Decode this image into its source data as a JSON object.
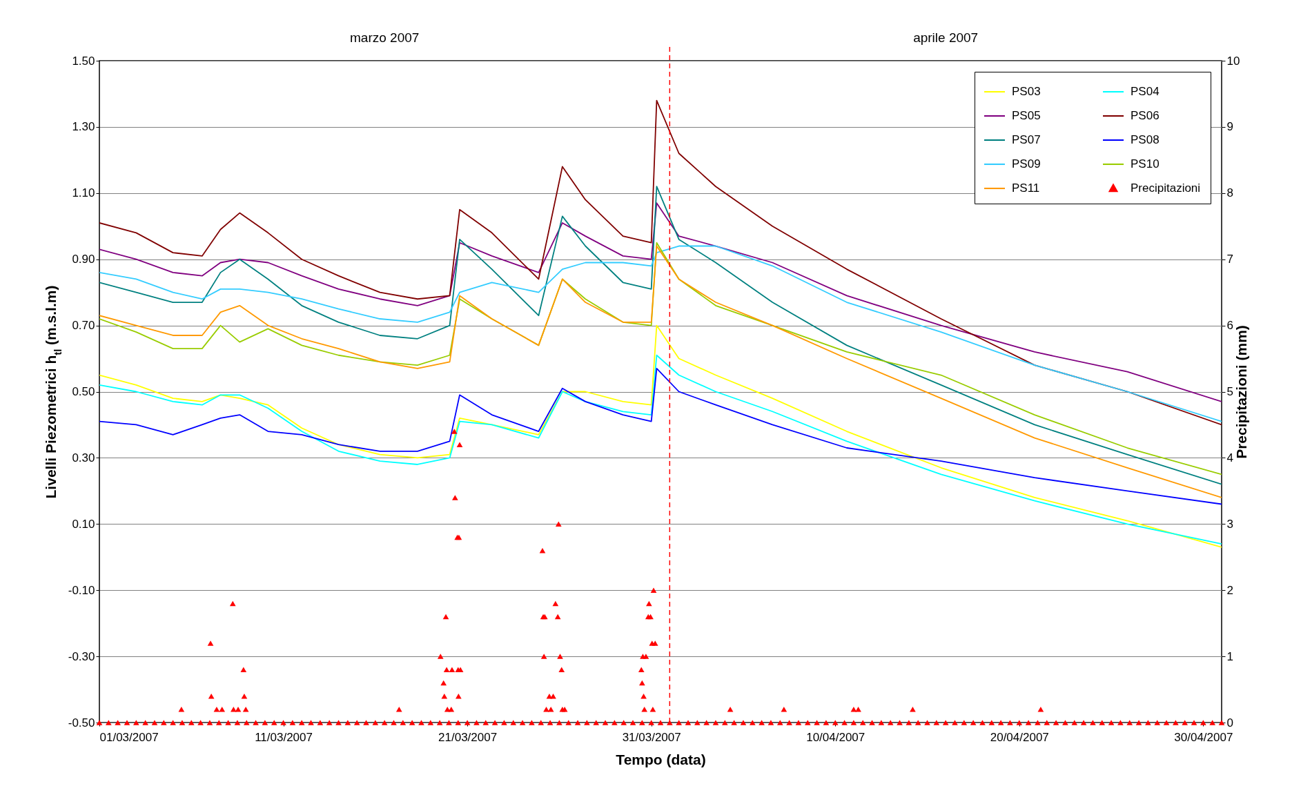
{
  "chart_data": {
    "type": "line",
    "xlabel": "Tempo (data)",
    "ylabel": "Livelli Piezometrici h$_{tl}$ (m.s.l.m)",
    "y2label": "Precipitazioni (mm)",
    "annotations": [
      "marzo 2007",
      "aprile 2007"
    ],
    "ref_lines": [
      {
        "axis": "x",
        "value": "2007-04-01",
        "color": "#ff0000",
        "line_style": "dashed"
      }
    ],
    "xlim": [
      "2007-03-01",
      "2007-05-01"
    ],
    "xticks": [
      {
        "value": "2007-03-01",
        "label": "01/03/2007"
      },
      {
        "value": "2007-03-11",
        "label": "11/03/2007"
      },
      {
        "value": "2007-03-21",
        "label": "21/03/2007"
      },
      {
        "value": "2007-03-31",
        "label": "31/03/2007"
      },
      {
        "value": "2007-04-10",
        "label": "10/04/2007"
      },
      {
        "value": "2007-04-20",
        "label": "20/04/2007"
      },
      {
        "value": "2007-04-30",
        "label": "30/04/2007"
      }
    ],
    "ylim": [
      -0.5,
      1.5
    ],
    "yticks": [
      {
        "value": 1.5,
        "label": "1.50"
      },
      {
        "value": 1.3,
        "label": "1.30"
      },
      {
        "value": 1.1,
        "label": "1.10"
      },
      {
        "value": 0.9,
        "label": "0.90"
      },
      {
        "value": 0.7,
        "label": "0.70"
      },
      {
        "value": 0.5,
        "label": "0.50"
      },
      {
        "value": 0.3,
        "label": "0.30"
      },
      {
        "value": 0.1,
        "label": "0.10"
      },
      {
        "value": -0.1,
        "label": "-0.10"
      },
      {
        "value": -0.3,
        "label": "-0.30"
      },
      {
        "value": -0.5,
        "label": "-0.50"
      }
    ],
    "y2lim": [
      0,
      10
    ],
    "y2ticks": [
      0,
      1,
      2,
      3,
      4,
      5,
      6,
      7,
      8,
      9,
      10
    ],
    "grid": "y",
    "legend": "top right",
    "x": [
      "2007-03-01",
      "2007-03-03",
      "2007-03-05",
      "2007-03-06T14:00",
      "2007-03-07T14:00",
      "2007-03-08T15:00",
      "2007-03-10T04:00",
      "2007-03-12",
      "2007-03-14",
      "2007-03-16T06:00",
      "2007-03-18T07:00",
      "2007-03-20T01:00",
      "2007-03-20T14:00",
      "2007-03-22T08:00",
      "2007-03-24T21:00",
      "2007-03-26T04:00",
      "2007-03-27T10:00",
      "2007-03-29T11:00",
      "2007-03-31T00:00",
      "2007-03-31T07:00",
      "2007-04-01T12:00",
      "2007-04-03T12:00",
      "2007-04-06T14:00",
      "2007-04-10T15:00",
      "2007-04-15T18:00",
      "2007-04-20T20:00",
      "2007-04-25T21:00",
      "2007-05-01"
    ],
    "series": [
      {
        "name": "PS03",
        "color": "#ffff00",
        "values": [
          0.55,
          0.52,
          0.48,
          0.47,
          0.49,
          0.48,
          0.46,
          0.39,
          0.34,
          0.31,
          0.3,
          0.31,
          0.42,
          0.4,
          0.37,
          0.5,
          0.5,
          0.47,
          0.46,
          0.7,
          0.6,
          0.55,
          0.48,
          0.38,
          0.27,
          0.18,
          0.11,
          0.03
        ]
      },
      {
        "name": "PS04",
        "color": "#00ffff",
        "values": [
          0.52,
          0.5,
          0.47,
          0.46,
          0.49,
          0.49,
          0.45,
          0.38,
          0.32,
          0.29,
          0.28,
          0.3,
          0.41,
          0.4,
          0.36,
          0.5,
          0.47,
          0.44,
          0.43,
          0.61,
          0.55,
          0.5,
          0.44,
          0.35,
          0.25,
          0.17,
          0.1,
          0.04
        ]
      },
      {
        "name": "PS05",
        "color": "#800080",
        "values": [
          0.93,
          0.9,
          0.86,
          0.85,
          0.89,
          0.9,
          0.89,
          0.85,
          0.81,
          0.78,
          0.76,
          0.79,
          0.95,
          0.91,
          0.86,
          1.01,
          0.97,
          0.91,
          0.9,
          1.07,
          0.97,
          0.94,
          0.89,
          0.79,
          0.7,
          0.62,
          0.56,
          0.47
        ]
      },
      {
        "name": "PS06",
        "color": "#800000",
        "values": [
          1.01,
          0.98,
          0.92,
          0.91,
          0.99,
          1.04,
          0.98,
          0.9,
          0.85,
          0.8,
          0.78,
          0.79,
          1.05,
          0.98,
          0.84,
          1.18,
          1.08,
          0.97,
          0.95,
          1.38,
          1.22,
          1.12,
          1.0,
          0.87,
          0.72,
          0.58,
          0.5,
          0.4
        ]
      },
      {
        "name": "PS07",
        "color": "#008080",
        "values": [
          0.83,
          0.8,
          0.77,
          0.77,
          0.86,
          0.9,
          0.84,
          0.76,
          0.71,
          0.67,
          0.66,
          0.7,
          0.96,
          0.87,
          0.73,
          1.03,
          0.94,
          0.83,
          0.81,
          1.12,
          0.96,
          0.89,
          0.77,
          0.64,
          0.52,
          0.4,
          0.31,
          0.22
        ]
      },
      {
        "name": "PS08",
        "color": "#0000ff",
        "values": [
          0.41,
          0.4,
          0.37,
          0.4,
          0.42,
          0.43,
          0.38,
          0.37,
          0.34,
          0.32,
          0.32,
          0.35,
          0.49,
          0.43,
          0.38,
          0.51,
          0.47,
          0.43,
          0.41,
          0.57,
          0.5,
          0.46,
          0.4,
          0.33,
          0.29,
          0.24,
          0.2,
          0.16
        ]
      },
      {
        "name": "PS09",
        "color": "#33ccff",
        "values": [
          0.86,
          0.84,
          0.8,
          0.78,
          0.81,
          0.81,
          0.8,
          0.78,
          0.75,
          0.72,
          0.71,
          0.74,
          0.8,
          0.83,
          0.8,
          0.87,
          0.89,
          0.89,
          0.88,
          0.92,
          0.94,
          0.94,
          0.88,
          0.77,
          0.68,
          0.58,
          0.5,
          0.41
        ]
      },
      {
        "name": "PS10",
        "color": "#99cc00",
        "values": [
          0.72,
          0.68,
          0.63,
          0.63,
          0.7,
          0.65,
          0.69,
          0.64,
          0.61,
          0.59,
          0.58,
          0.61,
          0.78,
          0.72,
          0.64,
          0.84,
          0.78,
          0.71,
          0.7,
          0.95,
          0.84,
          0.76,
          0.7,
          0.62,
          0.55,
          0.43,
          0.33,
          0.25
        ]
      },
      {
        "name": "PS11",
        "color": "#ff9900",
        "values": [
          0.73,
          0.7,
          0.67,
          0.67,
          0.74,
          0.76,
          0.7,
          0.66,
          0.63,
          0.59,
          0.57,
          0.59,
          0.79,
          0.72,
          0.64,
          0.84,
          0.77,
          0.71,
          0.71,
          0.94,
          0.84,
          0.77,
          0.7,
          0.6,
          0.48,
          0.36,
          0.27,
          0.18
        ]
      },
      {
        "name": "Precipitazioni",
        "type": "scatter",
        "axis": "y2",
        "marker": "triangle",
        "color": "#ff0000",
        "x": [
          "2007-03-01",
          "2007-03-01T12:00",
          "2007-03-02",
          "2007-03-02T12:00",
          "2007-03-03",
          "2007-03-03T12:00",
          "2007-03-04",
          "2007-03-04T12:00",
          "2007-03-05",
          "2007-03-05T12:00",
          "2007-03-06",
          "2007-03-06T12:00",
          "2007-03-07",
          "2007-03-07T12:00",
          "2007-03-08",
          "2007-03-08T12:00",
          "2007-03-09",
          "2007-03-09T12:00",
          "2007-03-10",
          "2007-03-10T12:00",
          "2007-03-11",
          "2007-03-11T12:00",
          "2007-03-12",
          "2007-03-12T12:00",
          "2007-03-13",
          "2007-03-13T12:00",
          "2007-03-14",
          "2007-03-14T12:00",
          "2007-03-15",
          "2007-03-15T12:00",
          "2007-03-16",
          "2007-03-16T12:00",
          "2007-03-17",
          "2007-03-17T12:00",
          "2007-03-18",
          "2007-03-18T12:00",
          "2007-03-19",
          "2007-03-19T12:00",
          "2007-03-20",
          "2007-03-20T12:00",
          "2007-03-21",
          "2007-03-21T12:00",
          "2007-03-22",
          "2007-03-22T12:00",
          "2007-03-23",
          "2007-03-23T12:00",
          "2007-03-24",
          "2007-03-24T12:00",
          "2007-03-25",
          "2007-03-25T12:00",
          "2007-03-26",
          "2007-03-26T12:00",
          "2007-03-27",
          "2007-03-27T12:00",
          "2007-03-28",
          "2007-03-28T12:00",
          "2007-03-29",
          "2007-03-29T12:00",
          "2007-03-30",
          "2007-03-30T12:00",
          "2007-03-31",
          "2007-03-31T12:00",
          "2007-04-01",
          "2007-04-01T12:00",
          "2007-04-02",
          "2007-04-02T12:00",
          "2007-04-03",
          "2007-04-03T12:00",
          "2007-04-04",
          "2007-04-04T12:00",
          "2007-04-05",
          "2007-04-05T12:00",
          "2007-04-06",
          "2007-04-06T12:00",
          "2007-04-07",
          "2007-04-07T12:00",
          "2007-04-08",
          "2007-04-08T12:00",
          "2007-04-09",
          "2007-04-09T12:00",
          "2007-04-10",
          "2007-04-10T12:00",
          "2007-04-11",
          "2007-04-11T12:00",
          "2007-04-12",
          "2007-04-12T12:00",
          "2007-04-13",
          "2007-04-13T12:00",
          "2007-04-14",
          "2007-04-14T12:00",
          "2007-04-15",
          "2007-04-15T12:00",
          "2007-04-16",
          "2007-04-16T12:00",
          "2007-04-17",
          "2007-04-17T12:00",
          "2007-04-18",
          "2007-04-18T12:00",
          "2007-04-19",
          "2007-04-19T12:00",
          "2007-04-20",
          "2007-04-20T12:00",
          "2007-04-21",
          "2007-04-21T12:00",
          "2007-04-22",
          "2007-04-22T12:00",
          "2007-04-23",
          "2007-04-23T12:00",
          "2007-04-24",
          "2007-04-24T12:00",
          "2007-04-25",
          "2007-04-25T12:00",
          "2007-04-26",
          "2007-04-26T12:00",
          "2007-04-27",
          "2007-04-27T12:00",
          "2007-04-28",
          "2007-04-28T12:00",
          "2007-04-29",
          "2007-04-29T12:00",
          "2007-04-30",
          "2007-04-30T12:00",
          "2007-05-01",
          "2007-03-05T11:00",
          "2007-03-07T01:00",
          "2007-03-07T02:00",
          "2007-03-07T09:00",
          "2007-03-07T16:00",
          "2007-03-08T06:00",
          "2007-03-08T07:00",
          "2007-03-08T13:00",
          "2007-03-08T20:00",
          "2007-03-08T21:00",
          "2007-03-08T23:00",
          "2007-03-17T07:00",
          "2007-03-19T13:00",
          "2007-03-19T17:00",
          "2007-03-19T18:00",
          "2007-03-19T20:00",
          "2007-03-19T21:00",
          "2007-03-19T22:00",
          "2007-03-20T03:00",
          "2007-03-20T04:00",
          "2007-03-20T07:00",
          "2007-03-20T08:00",
          "2007-03-20T11:00",
          "2007-03-20T12:00",
          "2007-03-20T12:30",
          "2007-03-20T13:00",
          "2007-03-20T14:00",
          "2007-03-20T15:00",
          "2007-03-25T02:00",
          "2007-03-25T03:00",
          "2007-03-25T04:00",
          "2007-03-25T05:00",
          "2007-03-25T07:00",
          "2007-03-25T11:00",
          "2007-03-25T13:00",
          "2007-03-25T16:00",
          "2007-03-25T19:00",
          "2007-03-25T22:00",
          "2007-03-25T23:00",
          "2007-03-26T01:00",
          "2007-03-26T03:00",
          "2007-03-26T04:00",
          "2007-03-26T07:00",
          "2007-03-30T11:00",
          "2007-03-30T12:00",
          "2007-03-30T13:00",
          "2007-03-30T14:00",
          "2007-03-30T15:00",
          "2007-03-30T17:00",
          "2007-03-30T20:00",
          "2007-03-30T21:00",
          "2007-03-30T23:00",
          "2007-03-31T01:00",
          "2007-03-31T02:00",
          "2007-03-31T03:00",
          "2007-03-31T05:00",
          "2007-04-04T07:00",
          "2007-04-07T05:00",
          "2007-04-11T00:00",
          "2007-04-11T06:00",
          "2007-04-14T05:00",
          "2007-04-21T04:00"
        ],
        "values": [
          0,
          0,
          0,
          0,
          0,
          0,
          0,
          0,
          0,
          0,
          0,
          0,
          0,
          0,
          0,
          0,
          0,
          0,
          0,
          0,
          0,
          0,
          0,
          0,
          0,
          0,
          0,
          0,
          0,
          0,
          0,
          0,
          0,
          0,
          0,
          0,
          0,
          0,
          0,
          0,
          0,
          0,
          0,
          0,
          0,
          0,
          0,
          0,
          0,
          0,
          0,
          0,
          0,
          0,
          0,
          0,
          0,
          0,
          0,
          0,
          0,
          0,
          0,
          0,
          0,
          0,
          0,
          0,
          0,
          0,
          0,
          0,
          0,
          0,
          0,
          0,
          0,
          0,
          0,
          0,
          0,
          0,
          0,
          0,
          0,
          0,
          0,
          0,
          0,
          0,
          0,
          0,
          0,
          0,
          0,
          0,
          0,
          0,
          0,
          0,
          0,
          0,
          0,
          0,
          0,
          0,
          0,
          0,
          0,
          0,
          0,
          0,
          0,
          0,
          0,
          0,
          0,
          0,
          0,
          0,
          0,
          0,
          0,
          0.2,
          1.2,
          0.4,
          0.2,
          0.2,
          1.8,
          0.2,
          0.2,
          0.8,
          0.4,
          0.2,
          0.2,
          1.0,
          0.6,
          0.4,
          1.6,
          0.8,
          0.2,
          0.2,
          0.8,
          4.4,
          3.4,
          2.8,
          0.8,
          0.4,
          2.8,
          4.2,
          0.8,
          2.6,
          1.6,
          1.0,
          1.6,
          0.2,
          0.4,
          0.2,
          0.4,
          1.8,
          1.6,
          3.0,
          1.0,
          0.8,
          0.2,
          0.2,
          0.8,
          0.6,
          1.0,
          0.4,
          0.2,
          1.0,
          1.6,
          1.8,
          1.6,
          1.2,
          0.2,
          2.0,
          1.2,
          0.2,
          0.2,
          0.2,
          0.2,
          0.2,
          0.2
        ]
      }
    ]
  }
}
